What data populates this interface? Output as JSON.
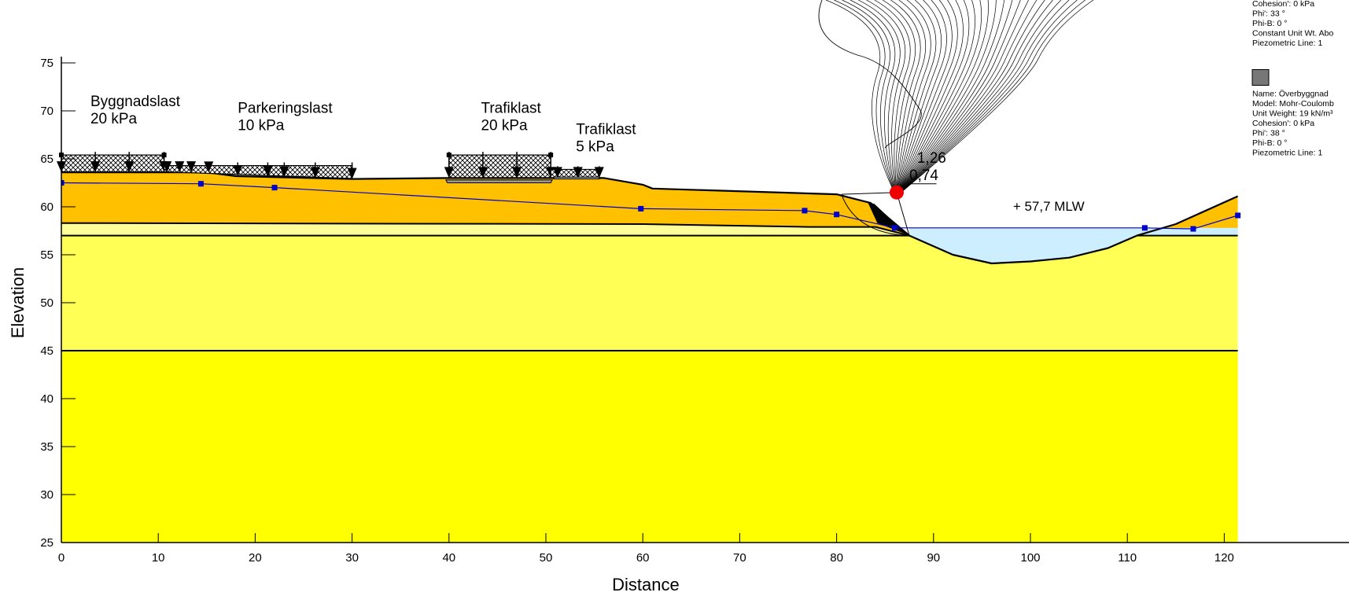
{
  "chart_data": {
    "type": "slope-stability-section",
    "xlabel": "Distance",
    "ylabel": "Elevation",
    "xlim": [
      0,
      121
    ],
    "ylim": [
      25,
      75
    ],
    "x_ticks": [
      0,
      10,
      20,
      30,
      40,
      50,
      60,
      70,
      80,
      90,
      100,
      110,
      120
    ],
    "y_ticks": [
      25,
      30,
      35,
      40,
      45,
      50,
      55,
      60,
      65,
      70,
      75
    ],
    "colors": {
      "fill_top_layer": "#FFC000",
      "thin_layer": "#FFFF99",
      "middle_layer": "#FFFF55",
      "bottom_layer": "#FFFF00",
      "water": "#CCEEFF",
      "piezometric_line": "#0000CC",
      "critical_center": "#EE0000",
      "legend_swatch": "#777777"
    },
    "soil_layers": [
      {
        "name": "fill",
        "polygon": [
          [
            0,
            63.6
          ],
          [
            15,
            63.6
          ],
          [
            18,
            63.2
          ],
          [
            30,
            62.9
          ],
          [
            40,
            63.0
          ],
          [
            56,
            63.0
          ],
          [
            60,
            62.3
          ],
          [
            61,
            61.9
          ],
          [
            80,
            61.3
          ],
          [
            83.5,
            60.4
          ],
          [
            87.5,
            57.0
          ],
          [
            87.5,
            57.0
          ],
          [
            84,
            57.9
          ],
          [
            77,
            57.9
          ],
          [
            60,
            58.2
          ],
          [
            0,
            58.3
          ]
        ],
        "color_key": "fill_top_layer"
      },
      {
        "name": "thin-layer",
        "polygon": [
          [
            0,
            58.3
          ],
          [
            60,
            58.2
          ],
          [
            77,
            57.9
          ],
          [
            84,
            57.9
          ],
          [
            87.5,
            57.0
          ],
          [
            0,
            57.0
          ]
        ],
        "color_key": "thin_layer"
      },
      {
        "name": "middle-layer",
        "polygon": [
          [
            0,
            57.0
          ],
          [
            87.5,
            57.0
          ],
          [
            92,
            55.0
          ],
          [
            96,
            54.1
          ],
          [
            100,
            54.3
          ],
          [
            104,
            54.7
          ],
          [
            108,
            55.7
          ],
          [
            111,
            57.0
          ],
          [
            121.4,
            57.0
          ],
          [
            121.4,
            45.0
          ],
          [
            0,
            45.0
          ]
        ],
        "color_key": "middle_layer"
      },
      {
        "name": "bottom-layer",
        "polygon": [
          [
            0,
            45.0
          ],
          [
            121.4,
            45.0
          ],
          [
            121.4,
            25.0
          ],
          [
            0,
            25.0
          ]
        ],
        "color_key": "bottom_layer"
      },
      {
        "name": "right-fill",
        "polygon": [
          [
            111,
            57.0
          ],
          [
            115,
            58.2
          ],
          [
            121.4,
            61.1
          ],
          [
            121.4,
            57.0
          ]
        ],
        "color_key": "fill_top_layer"
      }
    ],
    "water_polygon": [
      [
        87.5,
        57.8
      ],
      [
        121.4,
        57.8
      ],
      [
        121.4,
        57.0
      ],
      [
        111,
        57.0
      ],
      [
        108,
        55.7
      ],
      [
        104,
        54.7
      ],
      [
        100,
        54.3
      ],
      [
        96,
        54.1
      ],
      [
        92,
        55.0
      ],
      [
        87.5,
        57.0
      ]
    ],
    "layer_boundaries": [
      {
        "points": [
          [
            0,
            63.6
          ],
          [
            15,
            63.6
          ],
          [
            18,
            63.2
          ],
          [
            30,
            62.9
          ],
          [
            40,
            63.0
          ],
          [
            56,
            63.0
          ],
          [
            60,
            62.3
          ],
          [
            61,
            61.9
          ],
          [
            80,
            61.3
          ],
          [
            83.5,
            60.4
          ],
          [
            87.5,
            57.0
          ],
          [
            92,
            55.0
          ],
          [
            96,
            54.1
          ],
          [
            100,
            54.3
          ],
          [
            104,
            54.7
          ],
          [
            108,
            55.7
          ],
          [
            111,
            57.0
          ],
          [
            115,
            58.2
          ],
          [
            121.4,
            61.1
          ]
        ],
        "width": 2.2
      },
      {
        "points": [
          [
            0,
            58.3
          ],
          [
            60,
            58.2
          ],
          [
            77,
            57.9
          ],
          [
            84,
            57.9
          ],
          [
            87.5,
            57.0
          ]
        ],
        "width": 2
      },
      {
        "points": [
          [
            0,
            57.0
          ],
          [
            87.5,
            57.0
          ]
        ],
        "width": 2
      },
      {
        "points": [
          [
            111,
            57.0
          ],
          [
            121.4,
            57.0
          ]
        ],
        "width": 2
      },
      {
        "points": [
          [
            0,
            45.0
          ],
          [
            121.4,
            45.0
          ]
        ],
        "width": 2
      }
    ],
    "piezometric_line": [
      [
        0,
        62.5
      ],
      [
        14.4,
        62.4
      ],
      [
        22,
        62.0
      ],
      [
        59.8,
        59.8
      ],
      [
        76.7,
        59.6
      ],
      [
        80,
        59.2
      ],
      [
        86,
        57.8
      ],
      [
        111.8,
        57.8
      ],
      [
        116.8,
        57.7
      ],
      [
        121.4,
        59.1
      ]
    ],
    "loads": [
      {
        "name": "Byggnadslast",
        "magnitude": "20 kPa",
        "x1": 0,
        "x2": 10.6,
        "label_x": 3,
        "label_y": 70.5,
        "arrows": [
          0,
          3.5,
          7,
          10.6
        ]
      },
      {
        "name": "Parkeringslast",
        "magnitude": "10 kPa",
        "x1": 10.6,
        "x2": 30,
        "label_x": 18.2,
        "label_y": 69.8,
        "arrows": [
          10.9,
          12.2,
          13.4,
          15.2,
          18.2,
          21.3,
          23,
          26.2,
          30
        ]
      },
      {
        "name": "Trafiklast",
        "magnitude": "20 kPa",
        "x1": 40,
        "x2": 50.5,
        "label_x": 43.3,
        "label_y": 69.8,
        "arrows": [
          40,
          43.5,
          47,
          50.5
        ]
      },
      {
        "name": "Trafiklast",
        "magnitude": "5 kPa",
        "x1": 50.5,
        "x2": 55.5,
        "label_x": 53.1,
        "label_y": 67.6,
        "arrows": [
          51.2,
          53.3,
          55.5
        ]
      }
    ],
    "factor_of_safety": {
      "value_1": "1,26",
      "value_2": "0,74",
      "center": [
        86.2,
        61.5
      ]
    },
    "water_level_label": "+ 57,7 MLW",
    "legend": {
      "items": [
        {
          "lines": [
            "Cohesion': 0 kPa",
            "Phi': 33 °",
            "Phi-B: 0 °",
            "Constant Unit Wt. Abo",
            "Piezometric Line: 1"
          ],
          "swatch": false
        },
        {
          "lines": [
            "Name: Överbyggnad",
            "Model: Mohr-Coulomb",
            "Unit Weight: 19 kN/m³",
            "Cohesion': 0 kPa",
            "Phi': 38 °",
            "Phi-B: 0 °",
            "Piezometric Line: 1"
          ],
          "swatch": true
        }
      ]
    }
  }
}
